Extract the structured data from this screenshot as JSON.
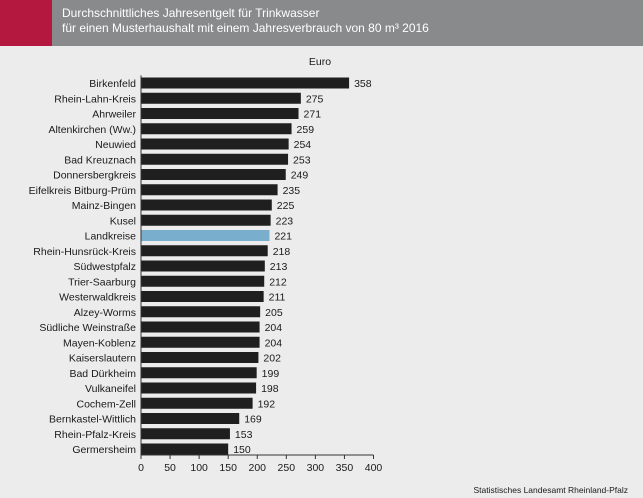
{
  "header": {
    "title_line1": "Durchschnittliches Jahresentgelt für Trinkwasser",
    "title_line2": "für einen Musterhaushalt mit einem Jahresverbrauch von 80 m³  2016"
  },
  "colors": {
    "accent": "#b5183e",
    "header_bg": "#898a8c",
    "bar": "#1f1f1f",
    "highlight_bar": "#79aecd",
    "background": "#ececec"
  },
  "chart_data": {
    "type": "bar",
    "orientation": "horizontal",
    "unit": "Euro",
    "categories": [
      "Birkenfeld",
      "Rhein-Lahn-Kreis",
      "Ahrweiler",
      "Altenkirchen (Ww.)",
      "Neuwied",
      "Bad Kreuznach",
      "Donnersbergkreis",
      "Eifelkreis Bitburg-Prüm",
      "Mainz-Bingen",
      "Kusel",
      "Landkreise",
      "Rhein-Hunsrück-Kreis",
      "Südwestpfalz",
      "Trier-Saarburg",
      "Westerwaldkreis",
      "Alzey-Worms",
      "Südliche Weinstraße",
      "Mayen-Koblenz",
      "Kaiserslautern",
      "Bad Dürkheim",
      "Vulkaneifel",
      "Cochem-Zell",
      "Bernkastel-Wittlich",
      "Rhein-Pfalz-Kreis",
      "Germersheim"
    ],
    "values": [
      358,
      275,
      271,
      259,
      254,
      253,
      249,
      235,
      225,
      223,
      221,
      218,
      213,
      212,
      211,
      205,
      204,
      204,
      202,
      199,
      198,
      192,
      169,
      153,
      150
    ],
    "highlight": "Landkreise",
    "xlim": [
      0,
      400
    ],
    "xticks": [
      0,
      50,
      100,
      150,
      200,
      250,
      300,
      350,
      400
    ],
    "grid": false,
    "legend": "none",
    "source": "Statistisches Landesamt Rheinland-Pfalz"
  }
}
